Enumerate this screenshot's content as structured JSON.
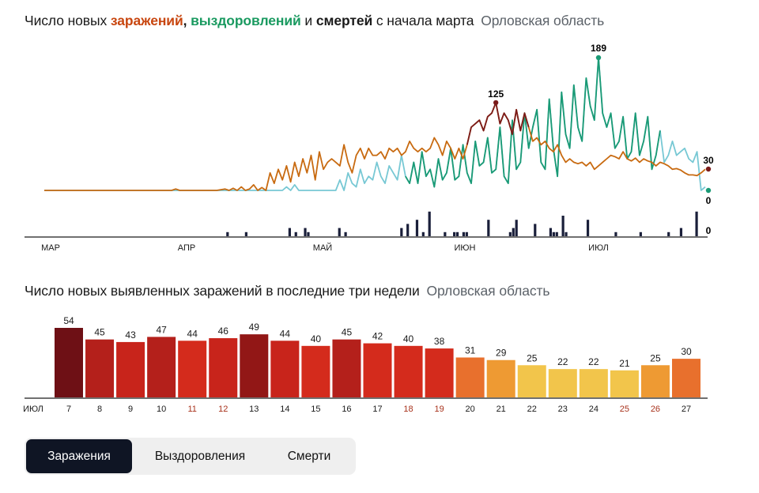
{
  "chart1": {
    "title_pre": "Число новых",
    "title_infections": "заражений",
    "title_sep": ",",
    "title_recoveries": "выздоровлений",
    "title_and": "и",
    "title_deaths": "смертей",
    "title_post": "с начала марта",
    "region": "Орловская область",
    "colors": {
      "infections": "#c86a10",
      "recoveries": "#77c8d4",
      "recoveries_peak": "#1a9a75",
      "infections_peak": "#7a1a1a",
      "deaths": "#1a1f3a"
    }
  },
  "chart2": {
    "title": "Число новых выявленных заражений в последние три недели",
    "region": "Орловская область"
  },
  "chart_data": [
    {
      "type": "line",
      "x_tick_labels": [
        "МАР",
        "АПР",
        "МАЙ",
        "ИЮН",
        "ИЮЛ"
      ],
      "x_range": [
        "2020-03-01",
        "2020-07-27"
      ],
      "series": [
        {
          "name": "заражений",
          "color": "#c86a10",
          "values": [
            0,
            0,
            0,
            0,
            0,
            0,
            0,
            0,
            0,
            0,
            0,
            0,
            0,
            0,
            0,
            0,
            0,
            0,
            0,
            0,
            0,
            0,
            0,
            0,
            0,
            0,
            0,
            0,
            0,
            0,
            0,
            0,
            2,
            0,
            0,
            0,
            0,
            0,
            0,
            0,
            0,
            0,
            0,
            1,
            2,
            0,
            3,
            0,
            5,
            0,
            2,
            8,
            0,
            4,
            0,
            25,
            10,
            30,
            15,
            35,
            12,
            40,
            20,
            45,
            25,
            50,
            15,
            55,
            30,
            40,
            45,
            40,
            35,
            65,
            40,
            25,
            50,
            60,
            45,
            60,
            50,
            50,
            55,
            45,
            60,
            55,
            60,
            50,
            55,
            70,
            60,
            55,
            60,
            55,
            60,
            75,
            65,
            50,
            70,
            60,
            45,
            60,
            45,
            65,
            90,
            95,
            100,
            85,
            105,
            110,
            125,
            95,
            110,
            100,
            80,
            115,
            85,
            110,
            90,
            70,
            75,
            65,
            70,
            60,
            55,
            65,
            50,
            40,
            45,
            40,
            38,
            40,
            35,
            40,
            30,
            35,
            40,
            45,
            50,
            48,
            45,
            55,
            45,
            42,
            46,
            40,
            45,
            42,
            40,
            35,
            40,
            38,
            35,
            30,
            31,
            29,
            25,
            22,
            22,
            21,
            25,
            30
          ],
          "peak_label": 125,
          "end_label": 30
        },
        {
          "name": "выздоровлений",
          "color": "#77c8d4",
          "values": [
            0,
            0,
            0,
            0,
            0,
            0,
            0,
            0,
            0,
            0,
            0,
            0,
            0,
            0,
            0,
            0,
            0,
            0,
            0,
            0,
            0,
            0,
            0,
            0,
            0,
            0,
            0,
            0,
            0,
            0,
            0,
            0,
            0,
            0,
            0,
            0,
            0,
            0,
            0,
            0,
            0,
            0,
            0,
            0,
            0,
            0,
            0,
            0,
            0,
            0,
            0,
            0,
            0,
            0,
            0,
            0,
            0,
            0,
            0,
            5,
            0,
            8,
            0,
            0,
            0,
            0,
            0,
            0,
            0,
            0,
            0,
            0,
            15,
            0,
            25,
            10,
            5,
            30,
            10,
            20,
            15,
            40,
            20,
            10,
            35,
            25,
            15,
            50,
            20,
            10,
            40,
            10,
            55,
            20,
            30,
            5,
            45,
            15,
            25,
            60,
            15,
            20,
            65,
            25,
            10,
            70,
            35,
            40,
            75,
            25,
            30,
            90,
            20,
            10,
            100,
            30,
            40,
            110,
            60,
            90,
            115,
            40,
            30,
            130,
            60,
            20,
            140,
            80,
            60,
            150,
            90,
            70,
            160,
            120,
            100,
            189,
            110,
            90,
            110,
            60,
            70,
            105,
            45,
            55,
            110,
            50,
            70,
            105,
            30,
            50,
            85,
            40,
            50,
            70,
            50,
            55,
            60,
            45,
            40,
            55,
            0,
            5
          ],
          "peak_label": 189,
          "end_label": 0
        },
        {
          "name": "смертей",
          "color": "#1a1f3a",
          "bars": [
            0,
            0,
            0,
            0,
            0,
            0,
            0,
            0,
            0,
            0,
            0,
            0,
            0,
            0,
            0,
            0,
            0,
            0,
            0,
            0,
            0,
            0,
            0,
            0,
            0,
            0,
            0,
            0,
            0,
            0,
            0,
            0,
            0,
            0,
            0,
            0,
            0,
            0,
            0,
            0,
            0,
            0,
            0,
            0,
            0,
            0,
            0,
            0,
            0,
            0,
            0,
            0,
            0,
            0,
            0,
            0,
            0,
            0,
            0,
            1,
            0,
            0,
            0,
            0,
            0,
            1,
            0,
            0,
            0,
            0,
            0,
            0,
            0,
            0,
            0,
            0,
            0,
            0,
            0,
            2,
            0,
            1,
            0,
            0,
            2,
            1,
            0,
            0,
            0,
            0,
            0,
            0,
            0,
            0,
            0,
            2,
            0,
            1,
            0,
            0,
            0,
            0,
            0,
            0,
            0,
            0,
            0,
            0,
            0,
            0,
            0,
            0,
            0,
            0,
            0,
            2,
            0,
            3,
            0,
            0,
            4,
            0,
            1,
            0,
            6,
            0,
            0,
            0,
            0,
            1,
            0,
            0,
            1,
            1,
            0,
            1,
            1,
            0,
            0,
            0,
            0,
            0,
            0,
            4,
            0,
            0,
            0,
            0,
            0,
            0,
            1,
            2,
            4,
            0,
            0,
            0,
            0,
            0,
            3,
            0,
            0,
            0,
            0,
            2,
            1,
            1,
            0,
            5,
            1,
            0,
            0,
            0,
            0,
            0,
            0,
            4,
            0,
            0,
            0,
            0,
            0,
            0,
            0,
            0,
            1,
            0,
            0,
            0,
            0,
            0,
            0,
            0,
            1,
            0,
            0,
            0,
            0,
            0,
            0,
            0,
            0,
            1,
            0,
            0,
            0,
            2,
            0,
            0,
            0,
            0,
            6,
            0
          ],
          "end_label": 0
        }
      ]
    },
    {
      "type": "bar",
      "month_label": "ИЮЛ",
      "categories": [
        "7",
        "8",
        "9",
        "10",
        "11",
        "12",
        "13",
        "14",
        "15",
        "16",
        "17",
        "18",
        "19",
        "20",
        "21",
        "22",
        "23",
        "24",
        "25",
        "26",
        "27"
      ],
      "values": [
        54,
        45,
        43,
        47,
        44,
        46,
        49,
        44,
        40,
        45,
        42,
        40,
        38,
        31,
        29,
        25,
        22,
        22,
        21,
        25,
        30
      ],
      "weekend": [
        false,
        false,
        false,
        false,
        true,
        true,
        false,
        false,
        false,
        false,
        false,
        true,
        true,
        false,
        false,
        false,
        false,
        false,
        true,
        true,
        false
      ]
    }
  ],
  "tabs": [
    {
      "label": "Заражения",
      "active": true
    },
    {
      "label": "Выздоровления",
      "active": false
    },
    {
      "label": "Смерти",
      "active": false
    }
  ]
}
